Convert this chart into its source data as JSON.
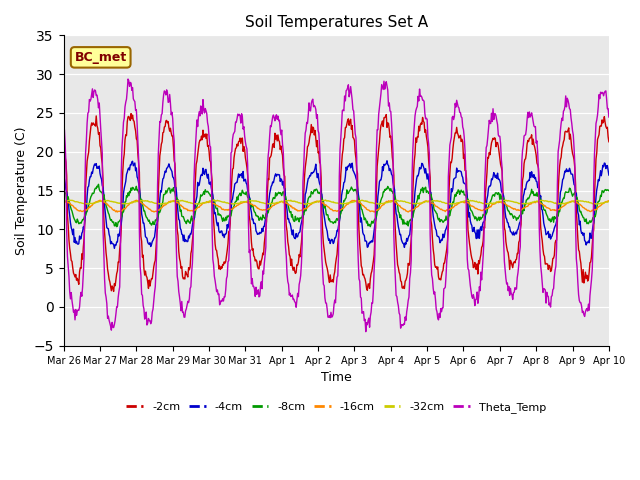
{
  "title": "Soil Temperatures Set A",
  "xlabel": "Time",
  "ylabel": "Soil Temperature (C)",
  "ylim": [
    -5,
    35
  ],
  "annotation": "BC_met",
  "legend_labels": [
    "-2cm",
    "-4cm",
    "-8cm",
    "-16cm",
    "-32cm",
    "Theta_Temp"
  ],
  "colors": {
    "-2cm": "#cc0000",
    "-4cm": "#0000cc",
    "-8cm": "#009900",
    "-16cm": "#ff8800",
    "-32cm": "#cccc00",
    "Theta_Temp": "#bb00bb"
  },
  "bg_color": "#e8e8e8",
  "yticks": [
    -5,
    0,
    5,
    10,
    15,
    20,
    25,
    30,
    35
  ],
  "figsize": [
    6.4,
    4.8
  ],
  "dpi": 100
}
